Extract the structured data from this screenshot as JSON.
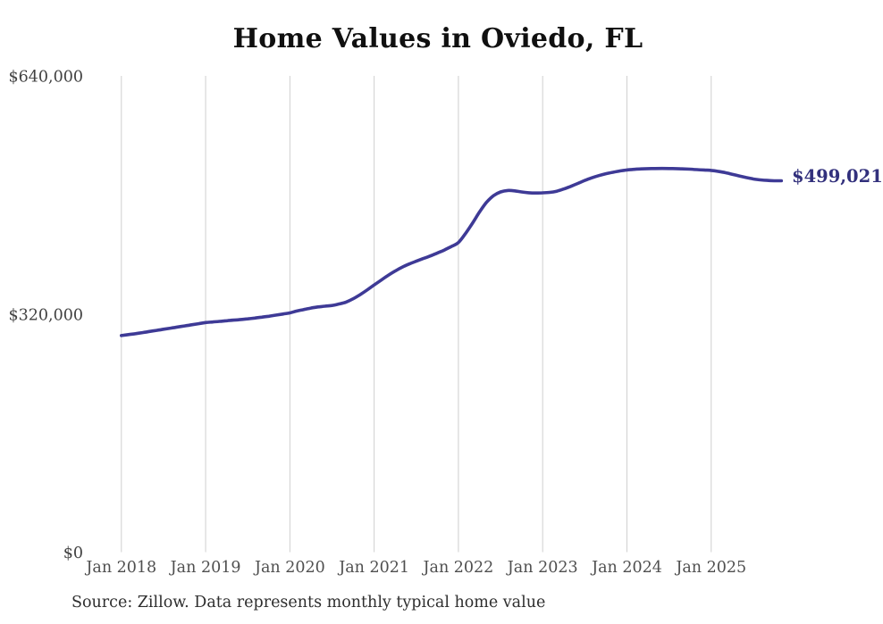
{
  "chart_data": {
    "type": "line",
    "title": "Home Values in Oviedo, FL",
    "source_note": "Source: Zillow. Data represents monthly typical home value",
    "end_label": "$499,021",
    "latest_value": 499021,
    "series_name": "Monthly typical home value",
    "x_start_month": "2018-01",
    "x_end_month": "2025-11",
    "x_tick_labels": [
      "Jan 2018",
      "Jan 2019",
      "Jan 2020",
      "Jan 2021",
      "Jan 2022",
      "Jan 2023",
      "Jan 2024",
      "Jan 2025"
    ],
    "y_ticks": [
      0,
      320000,
      640000
    ],
    "y_tick_labels": [
      "$0",
      "$320,000",
      "$640,000"
    ],
    "ylim": [
      0,
      640000
    ],
    "grid": "vertical-only",
    "legend": "none",
    "line_color": "#3e3a96",
    "end_label_color": "#32307c",
    "grid_color": "#cfcfcf",
    "values_monthly": [
      291000,
      292300,
      293600,
      295000,
      296500,
      298000,
      299500,
      301000,
      302500,
      304000,
      305500,
      307000,
      308500,
      309300,
      310100,
      311000,
      311800,
      312600,
      313500,
      314600,
      315800,
      317000,
      318500,
      320000,
      321500,
      324000,
      326000,
      328000,
      329500,
      330500,
      331500,
      333500,
      336000,
      340500,
      346000,
      352300,
      359000,
      365500,
      372000,
      377800,
      383000,
      387200,
      391000,
      394500,
      398000,
      402000,
      406000,
      410800,
      416000,
      428000,
      442000,
      457000,
      470000,
      479000,
      484000,
      486000,
      485500,
      484000,
      483000,
      482600,
      482800,
      483500,
      485000,
      488000,
      491500,
      495500,
      499500,
      503000,
      506000,
      508500,
      510500,
      512200,
      513500,
      514400,
      515000,
      515300,
      515500,
      515600,
      515500,
      515300,
      515000,
      514600,
      514000,
      513500,
      513000,
      511700,
      510000,
      507800,
      505500,
      503400,
      501500,
      500200,
      499500,
      499100,
      499021
    ]
  }
}
